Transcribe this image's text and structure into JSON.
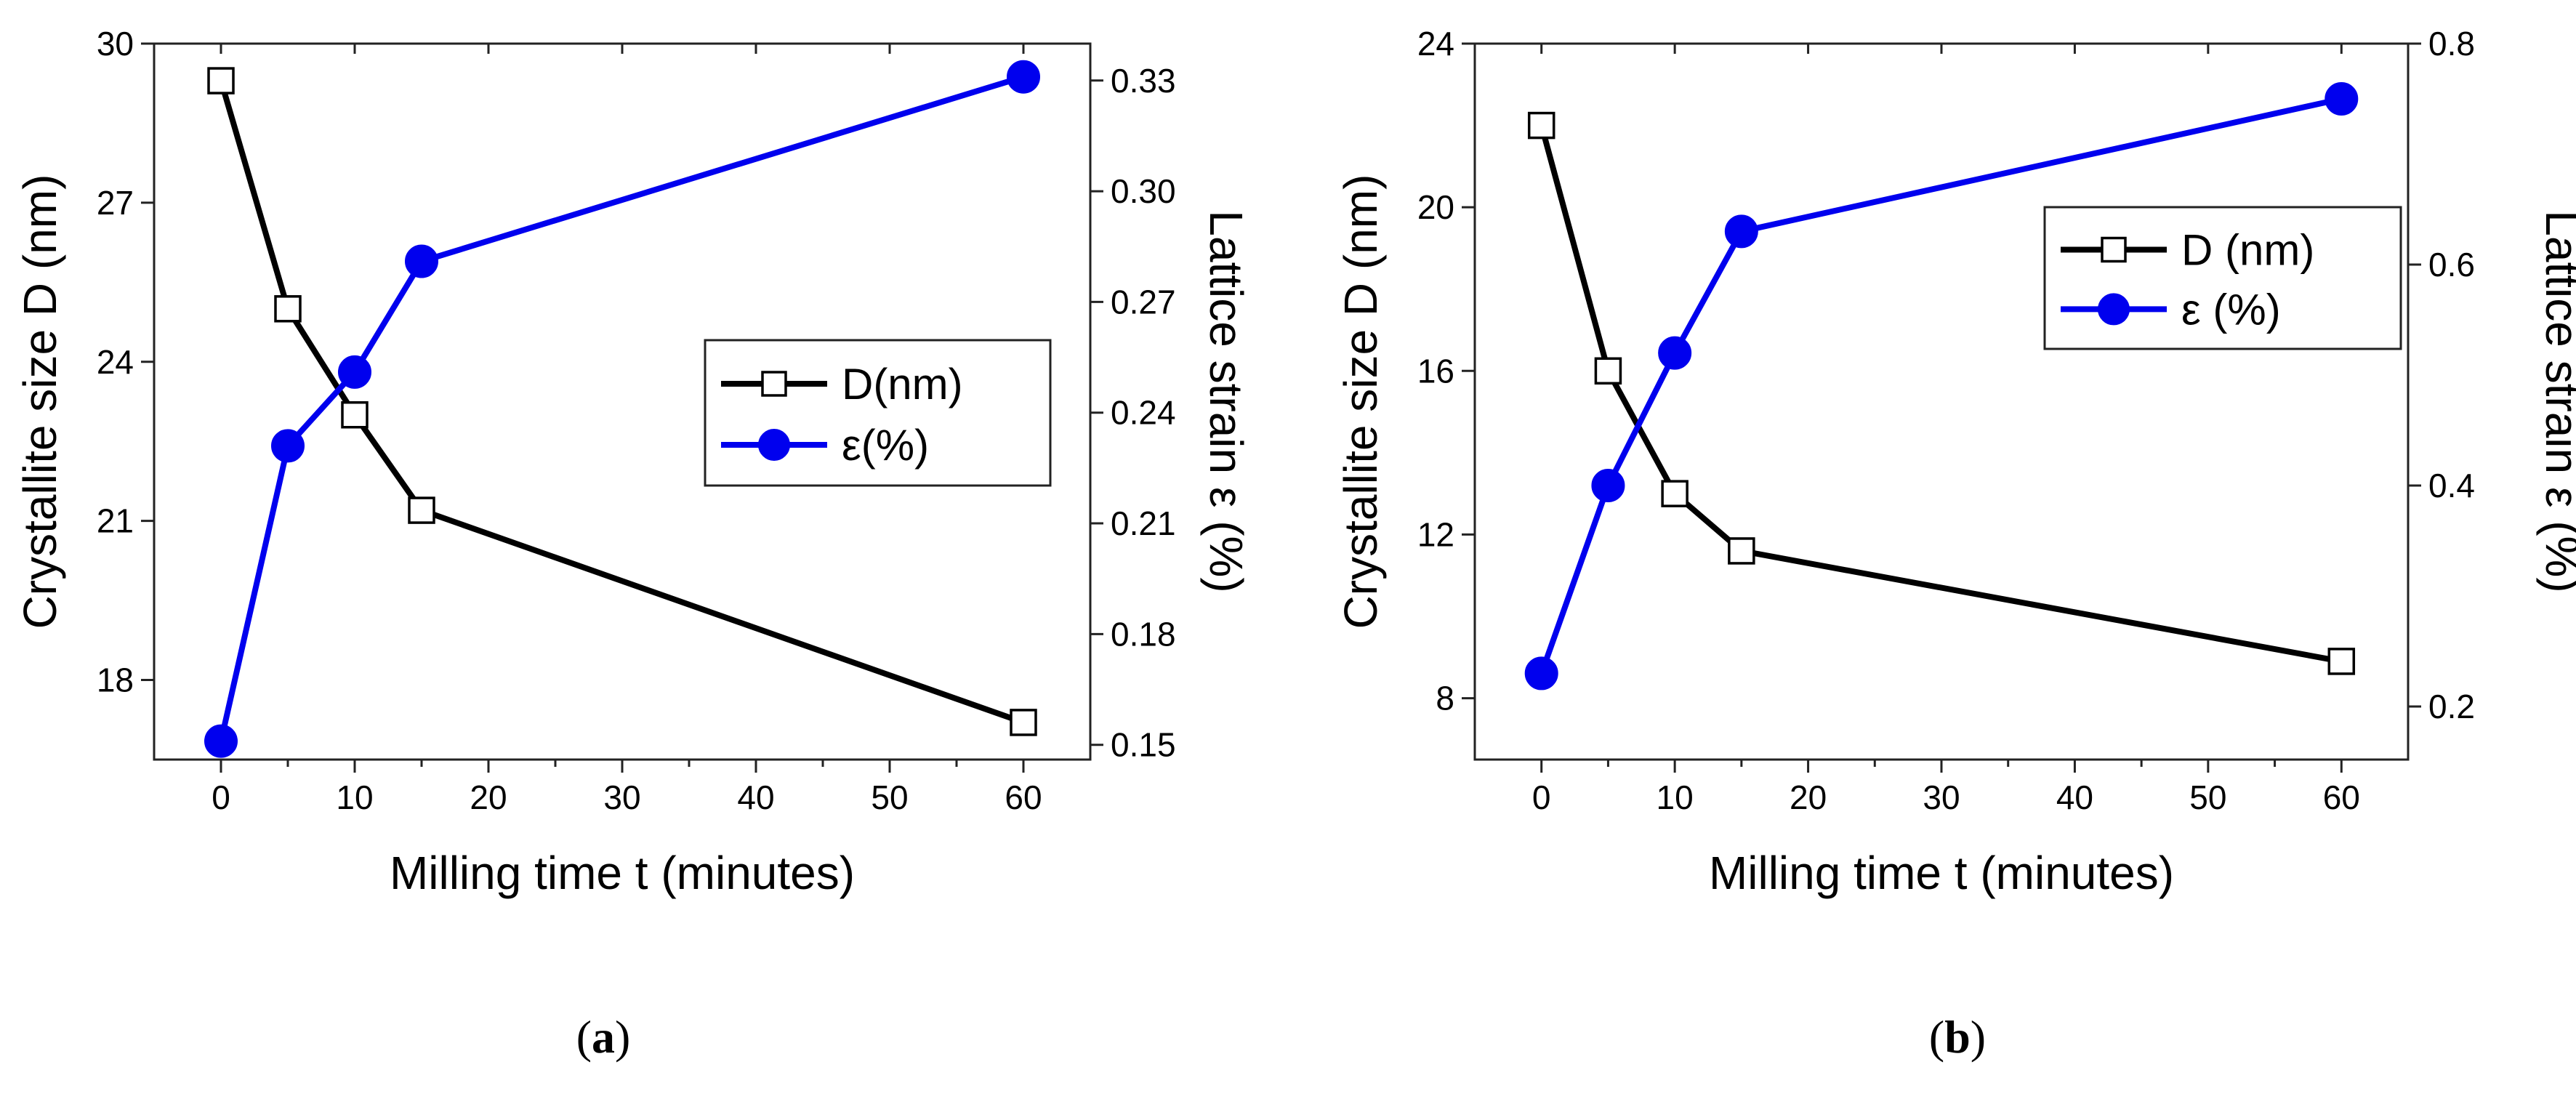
{
  "figure": {
    "panels": [
      {
        "label_open": "(",
        "label_letter": "a",
        "label_close": ")"
      },
      {
        "label_open": "(",
        "label_letter": "b",
        "label_close": ")"
      }
    ]
  },
  "colors": {
    "series_D": "#000000",
    "series_strain": "#0000ee",
    "marker_fill_D": "#ffffff"
  },
  "icons": {
    "D_marker": "open-square",
    "strain_marker": "filled-circle"
  },
  "chart_data": [
    {
      "type": "line",
      "panel": "a",
      "xlabel": "Milling time t (minutes)",
      "ylabel": "Crystallite size D (nm)",
      "y2label": "Lattice strain  ε (%)",
      "xlim": [
        -5,
        65
      ],
      "ylim": [
        16.5,
        30
      ],
      "y2lim": [
        0.146,
        0.34
      ],
      "xticks": [
        0,
        10,
        20,
        30,
        40,
        50,
        60
      ],
      "yticks": [
        18,
        21,
        24,
        27,
        30
      ],
      "y2ticks": [
        "0.15",
        "0.18",
        "0.21",
        "0.24",
        "0.27",
        "0.30",
        "0.33"
      ],
      "grid": false,
      "legend": "center-right",
      "series": [
        {
          "name": "D(nm)",
          "axis": "left",
          "marker": "open-square",
          "x": [
            0,
            5,
            10,
            15,
            60
          ],
          "values": [
            29.3,
            25.0,
            23.0,
            21.2,
            17.2
          ]
        },
        {
          "name": "ε(%)",
          "axis": "right",
          "marker": "filled-circle",
          "x": [
            0,
            5,
            10,
            15,
            60
          ],
          "values": [
            0.151,
            0.231,
            0.251,
            0.281,
            0.331
          ]
        }
      ]
    },
    {
      "type": "line",
      "panel": "b",
      "xlabel": "Milling time t (minutes)",
      "ylabel": "Crystallite size D (nm)",
      "y2label": "Lattice strain  ε (%)",
      "xlim": [
        -5,
        65
      ],
      "ylim": [
        6.5,
        24
      ],
      "y2lim": [
        0.152,
        0.8
      ],
      "xticks": [
        0,
        10,
        20,
        30,
        40,
        50,
        60
      ],
      "yticks": [
        8,
        12,
        16,
        20,
        24
      ],
      "y2ticks": [
        "0.2",
        "0.4",
        "0.6",
        "0.8"
      ],
      "grid": false,
      "legend": "upper-right",
      "series": [
        {
          "name": "D (nm)",
          "axis": "left",
          "marker": "open-square",
          "x": [
            0,
            5,
            10,
            15,
            60
          ],
          "values": [
            22.0,
            16.0,
            13.0,
            11.6,
            8.9
          ]
        },
        {
          "name": "ε (%)",
          "axis": "right",
          "marker": "filled-circle",
          "x": [
            0,
            5,
            10,
            15,
            60
          ],
          "values": [
            0.23,
            0.4,
            0.52,
            0.63,
            0.75
          ]
        }
      ]
    }
  ]
}
